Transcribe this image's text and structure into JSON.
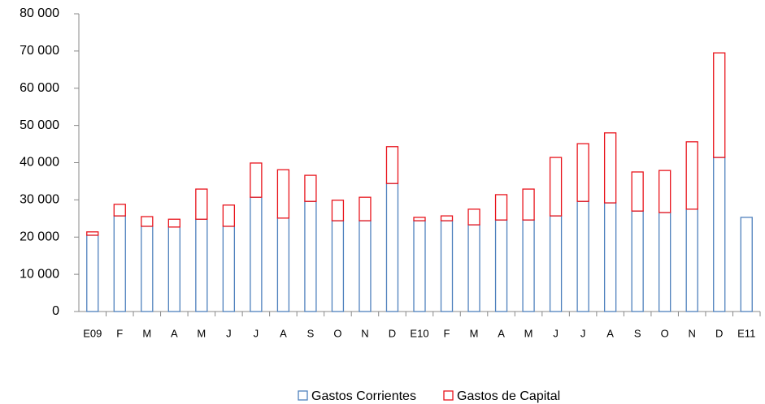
{
  "chart_data": {
    "type": "stacked_bar",
    "categories": [
      "E09",
      "F",
      "M",
      "A",
      "M",
      "J",
      "J",
      "A",
      "S",
      "O",
      "N",
      "D",
      "E10",
      "F",
      "M",
      "A",
      "M",
      "J",
      "J",
      "A",
      "S",
      "O",
      "N",
      "D",
      "E11"
    ],
    "series": [
      {
        "name": "Gastos Corrientes",
        "color": "#4f81bd",
        "values": [
          20500,
          25700,
          22900,
          22700,
          24800,
          22900,
          30700,
          25100,
          29600,
          24400,
          24400,
          34400,
          24400,
          24400,
          23300,
          24600,
          24600,
          25700,
          29600,
          29200,
          27000,
          26600,
          27500,
          41400,
          25300
        ]
      },
      {
        "name": "Gastos de Capital",
        "color": "#e8141c",
        "values": [
          900,
          3100,
          2600,
          2100,
          8100,
          5700,
          9200,
          13000,
          7000,
          5500,
          6300,
          9900,
          900,
          1300,
          4200,
          6800,
          8300,
          15700,
          15500,
          18800,
          10500,
          11300,
          18100,
          28100,
          null
        ]
      }
    ],
    "ylim": [
      0,
      80000
    ],
    "yticks": [
      0,
      {
        "value": 10000,
        "label": "10 000"
      },
      {
        "value": 20000,
        "label": "20 000"
      },
      {
        "value": 30000,
        "label": "30 000"
      },
      {
        "value": 40000,
        "label": "40 000"
      },
      {
        "value": 50000,
        "label": "50 000"
      },
      {
        "value": 60000,
        "label": "60 000"
      },
      {
        "value": 70000,
        "label": "70 000"
      },
      {
        "value": 80000,
        "label": "80 000"
      }
    ],
    "legend": "bottom"
  }
}
